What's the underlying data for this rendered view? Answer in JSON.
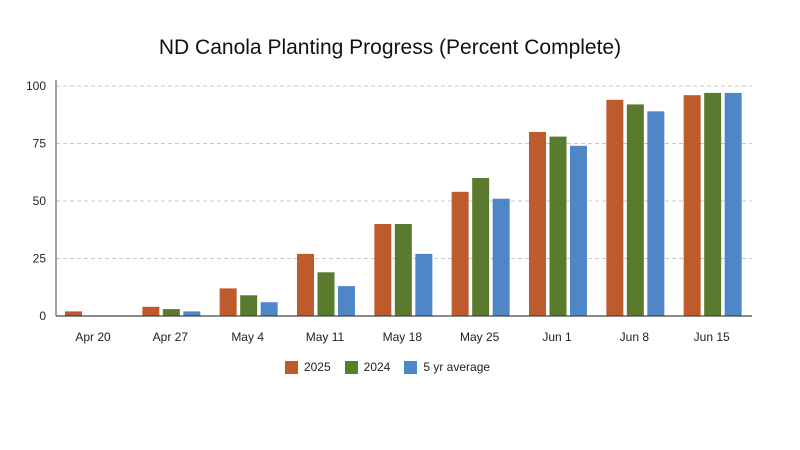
{
  "chart_data": {
    "type": "bar",
    "title": "ND Canola Planting Progress (Percent Complete)",
    "xlabel": "",
    "ylabel": "",
    "categories": [
      "Apr 20",
      "Apr 27",
      "May 4",
      "May 11",
      "May 18",
      "May 25",
      "Jun 1",
      "Jun 8",
      "Jun 15"
    ],
    "ylim": [
      0,
      100
    ],
    "yticks": [
      0,
      25,
      50,
      75,
      100
    ],
    "grid": true,
    "legend_position": "bottom",
    "series": [
      {
        "name": "2025",
        "color": "#bd5b2c",
        "values": [
          2,
          4,
          12,
          27,
          40,
          54,
          80,
          94,
          96
        ]
      },
      {
        "name": "2024",
        "color": "#5a7a2e",
        "values": [
          0,
          3,
          9,
          19,
          40,
          60,
          78,
          92,
          97
        ]
      },
      {
        "name": "5 yr average",
        "color": "#4f86c6",
        "values": [
          0,
          2,
          6,
          13,
          27,
          51,
          74,
          89,
          97
        ]
      }
    ]
  }
}
